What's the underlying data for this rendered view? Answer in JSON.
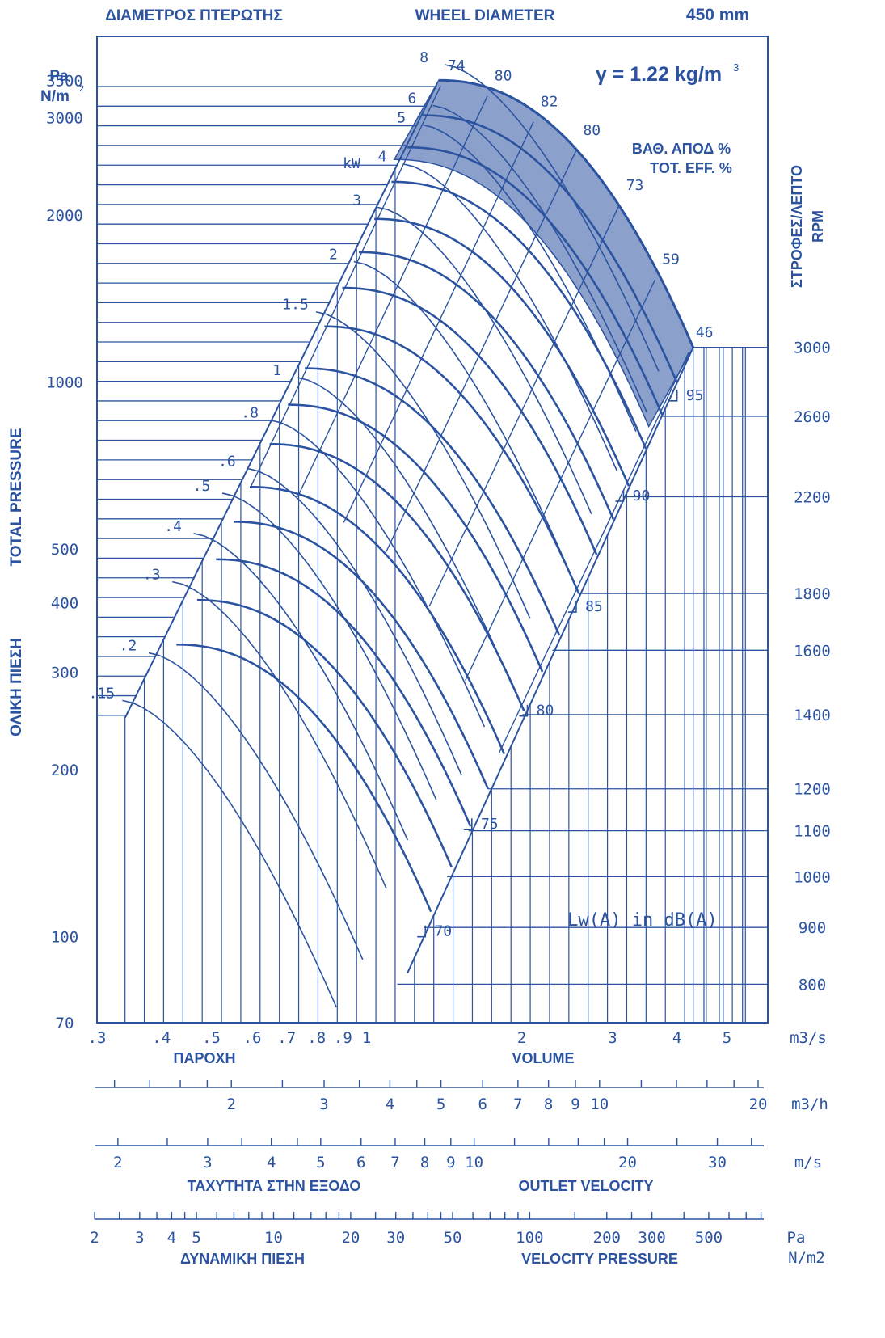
{
  "chart_data": {
    "type": "line",
    "header": {
      "title_gr": "ΔΙΑΜΕΤΡΟΣ ΠΤΕΡΩΤΗΣ",
      "title_en": "WHEEL DIAMETER",
      "diameter": "450 mm"
    },
    "density_label": "γ = 1.22 kg/m",
    "density_sup": "3",
    "y_unit_line1": "Pa",
    "y_unit_line2": "N/m",
    "y_unit_sup": "2",
    "ylabel_en": "TOTAL PRESSURE",
    "ylabel_gr": "ΟΛΙΚΗ ΠΙΕΣΗ",
    "rpm_label_gr": "ΣΤΡΟΦΕΣ/ΛΕΠΤΟ",
    "rpm_label_en": "RPM",
    "eff_label_gr": "ΒΑΘ. ΑΠΟΔ %",
    "eff_label_en": "TOT. EFF. %",
    "kw_label": "kW",
    "noise_label": "Lw(A) in dB(A)",
    "y_scale": "log",
    "x_scale": "log",
    "ylim": [
      70,
      4200
    ],
    "xlim": [
      0.3,
      6
    ],
    "y_ticks": [
      {
        "v": 70,
        "label": "70"
      },
      {
        "v": 100,
        "label": "100"
      },
      {
        "v": 200,
        "label": "200"
      },
      {
        "v": 300,
        "label": "300"
      },
      {
        "v": 400,
        "label": "400"
      },
      {
        "v": 500,
        "label": "500"
      },
      {
        "v": 1000,
        "label": "1000"
      },
      {
        "v": 2000,
        "label": "2000"
      },
      {
        "v": 3000,
        "label": "3000"
      },
      {
        "v": 3500,
        "label": "3500"
      }
    ],
    "x_ticks": [
      {
        "v": 0.3,
        "label": ".3"
      },
      {
        "v": 0.4,
        "label": ".4"
      },
      {
        "v": 0.5,
        "label": ".5"
      },
      {
        "v": 0.6,
        "label": ".6"
      },
      {
        "v": 0.7,
        "label": ".7"
      },
      {
        "v": 0.8,
        "label": ".8"
      },
      {
        "v": 0.9,
        "label": ".9"
      },
      {
        "v": 1,
        "label": "1"
      },
      {
        "v": 2,
        "label": "2"
      },
      {
        "v": 3,
        "label": "3"
      },
      {
        "v": 4,
        "label": "4"
      },
      {
        "v": 5,
        "label": "5"
      }
    ],
    "x_unit": "m3/s",
    "xlabel_gr": "ΠΑΡΟΧΗ",
    "xlabel_en": "VOLUME",
    "rpm_ticks": [
      {
        "rpm": 800,
        "label": "800"
      },
      {
        "rpm": 900,
        "label": "900"
      },
      {
        "rpm": 1000,
        "label": "1000"
      },
      {
        "rpm": 1100,
        "label": "1100"
      },
      {
        "rpm": 1200,
        "label": "1200"
      },
      {
        "rpm": 1400,
        "label": "1400"
      },
      {
        "rpm": 1600,
        "label": "1600"
      },
      {
        "rpm": 1800,
        "label": "1800"
      },
      {
        "rpm": 2200,
        "label": "2200"
      },
      {
        "rpm": 2600,
        "label": "2600"
      },
      {
        "rpm": 3000,
        "label": "3000"
      }
    ],
    "power_labels": [
      {
        "label": "8",
        "q": 1.35,
        "p": 3850
      },
      {
        "label": "6",
        "q": 1.28,
        "p": 3250
      },
      {
        "label": "5",
        "q": 1.22,
        "p": 3000
      },
      {
        "label": "4",
        "q": 1.12,
        "p": 2550
      },
      {
        "label": "3",
        "q": 1.0,
        "p": 2130
      },
      {
        "label": "2",
        "q": 0.9,
        "p": 1700
      },
      {
        "label": "1.5",
        "q": 0.76,
        "p": 1380
      },
      {
        "label": "1",
        "q": 0.7,
        "p": 1050
      },
      {
        "label": ".8",
        "q": 0.62,
        "p": 880
      },
      {
        "label": ".6",
        "q": 0.56,
        "p": 720
      },
      {
        "label": ".5",
        "q": 0.5,
        "p": 650
      },
      {
        "label": ".4",
        "q": 0.44,
        "p": 550
      },
      {
        "label": ".3",
        "q": 0.4,
        "p": 450
      },
      {
        "label": ".2",
        "q": 0.36,
        "p": 335
      },
      {
        "label": ".15",
        "q": 0.32,
        "p": 275
      }
    ],
    "efficiency_labels": [
      {
        "label": "74",
        "q": 1.42,
        "p": 3600
      },
      {
        "label": "80",
        "q": 1.75,
        "p": 3450
      },
      {
        "label": "82",
        "q": 2.15,
        "p": 3100
      },
      {
        "label": "80",
        "q": 2.6,
        "p": 2750
      },
      {
        "label": "73",
        "q": 3.15,
        "p": 2190
      },
      {
        "label": "59",
        "q": 3.7,
        "p": 1610
      },
      {
        "label": "46",
        "q": 4.3,
        "p": 1190
      }
    ],
    "noise_labels": [
      {
        "label": "95",
        "q": 4.0,
        "p": 925
      },
      {
        "label": "90",
        "q": 3.15,
        "p": 610
      },
      {
        "label": "85",
        "q": 2.55,
        "p": 385
      },
      {
        "label": "80",
        "q": 2.05,
        "p": 250
      },
      {
        "label": "75",
        "q": 1.6,
        "p": 156
      },
      {
        "label": "70",
        "q": 1.3,
        "p": 100
      }
    ],
    "m3h_scale": {
      "unit": "m3/h",
      "labels": [
        {
          "v": 2,
          "label": "2"
        },
        {
          "v": 3,
          "label": "3"
        },
        {
          "v": 4,
          "label": "4"
        },
        {
          "v": 5,
          "label": "5"
        },
        {
          "v": 6,
          "label": "6"
        },
        {
          "v": 7,
          "label": "7"
        },
        {
          "v": 8,
          "label": "8"
        },
        {
          "v": 9,
          "label": "9"
        },
        {
          "v": 10,
          "label": "10"
        },
        {
          "v": 20,
          "label": "20"
        }
      ]
    },
    "velocity_scale": {
      "unit": "m/s",
      "xlabel_gr": "ΤΑΧΥΤΗΤΑ ΣΤΗΝ ΕΞΟΔΟ",
      "xlabel_en": "OUTLET VELOCITY",
      "labels": [
        {
          "v": 2,
          "label": "2"
        },
        {
          "v": 3,
          "label": "3"
        },
        {
          "v": 4,
          "label": "4"
        },
        {
          "v": 5,
          "label": "5"
        },
        {
          "v": 6,
          "label": "6"
        },
        {
          "v": 7,
          "label": "7"
        },
        {
          "v": 8,
          "label": "8"
        },
        {
          "v": 9,
          "label": "9"
        },
        {
          "v": 10,
          "label": "10"
        },
        {
          "v": 20,
          "label": "20"
        },
        {
          "v": 30,
          "label": "30"
        }
      ]
    },
    "dynamic_pressure_scale": {
      "unit_line1": "Pa",
      "unit_line2": "N/m2",
      "xlabel_gr": "ΔΥΝΑΜΙΚΗ ΠΙΕΣΗ",
      "xlabel_en": "VELOCITY PRESSURE",
      "labels": [
        {
          "v": 2,
          "label": "2"
        },
        {
          "v": 3,
          "label": "3"
        },
        {
          "v": 4,
          "label": "4"
        },
        {
          "v": 5,
          "label": "5"
        },
        {
          "v": 10,
          "label": "10"
        },
        {
          "v": 20,
          "label": "20"
        },
        {
          "v": 30,
          "label": "30"
        },
        {
          "v": 50,
          "label": "50"
        },
        {
          "v": 100,
          "label": "100"
        },
        {
          "v": 200,
          "label": "200"
        },
        {
          "v": 300,
          "label": "300"
        },
        {
          "v": 500,
          "label": "500"
        }
      ]
    }
  }
}
